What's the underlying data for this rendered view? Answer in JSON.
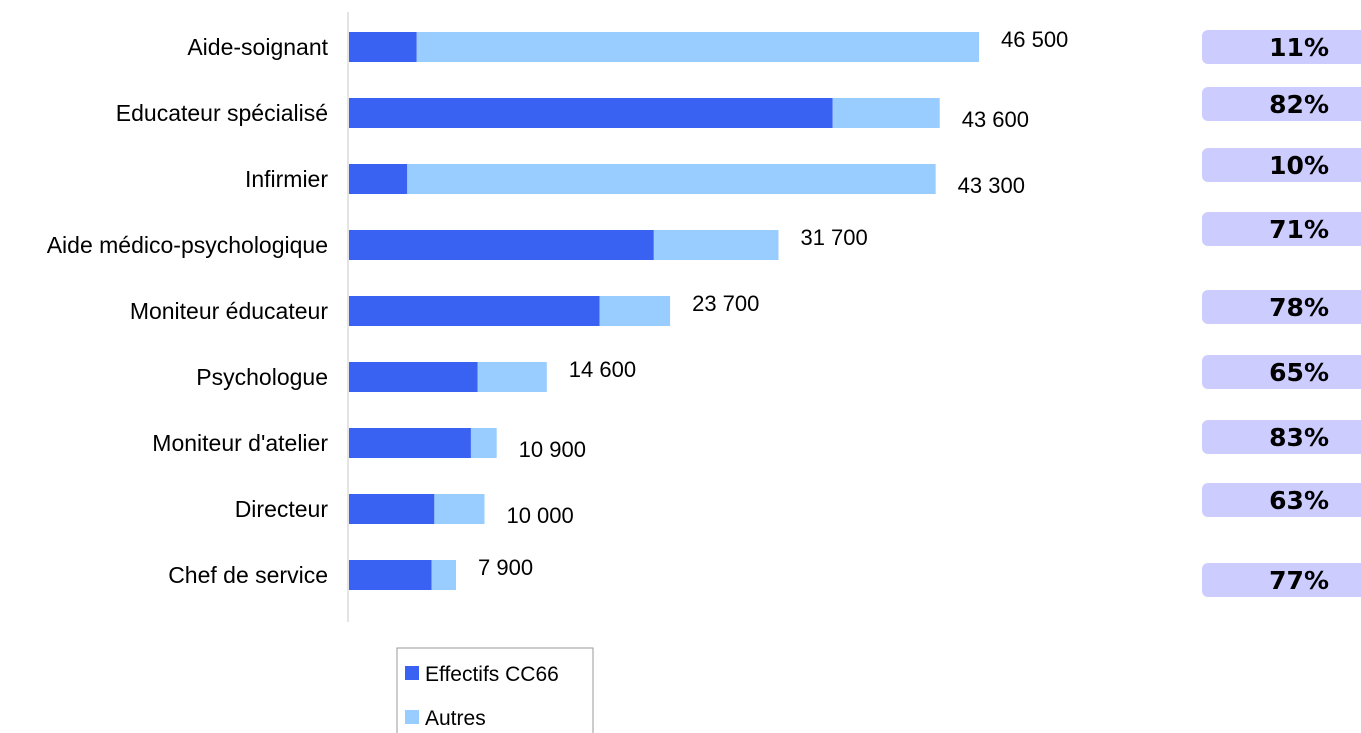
{
  "chart_data": {
    "type": "bar",
    "orientation": "horizontal",
    "stacked": true,
    "categories": [
      "Aide-soignant",
      "Educateur spécialisé",
      "Infirmier",
      "Aide médico-psychologique",
      "Moniteur éducateur",
      "Psychologue",
      "Moniteur d'atelier",
      "Directeur",
      "Chef de service"
    ],
    "series": [
      {
        "name": "Effectifs CC66",
        "color": "#3a62f2",
        "values": [
          5000,
          35700,
          4300,
          22500,
          18500,
          9500,
          9000,
          6300,
          6100
        ]
      },
      {
        "name": "Autres",
        "color": "#99ccff",
        "values": [
          41500,
          7900,
          39000,
          9200,
          5200,
          5100,
          1900,
          3700,
          1800
        ]
      }
    ],
    "total_labels": [
      "46 500",
      "43 600",
      "43 300",
      "31 700",
      "23 700",
      "14 600",
      "10 900",
      "10 000",
      "7 900"
    ],
    "share_labels": [
      "11%",
      "82%",
      "10%",
      "71%",
      "78%",
      "65%",
      "83%",
      "63%",
      "77%"
    ],
    "share_box_color": "#ccccff",
    "xlim": [
      0,
      48000
    ],
    "grid": false,
    "legend_position": "bottom"
  }
}
